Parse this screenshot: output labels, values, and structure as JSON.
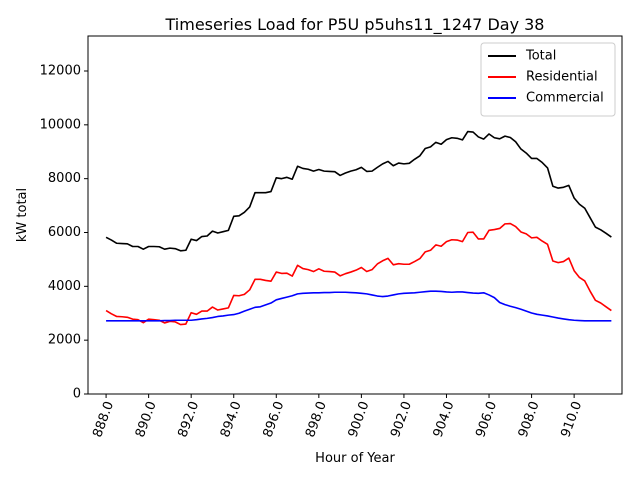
{
  "chart_data": {
    "type": "line",
    "title": "Timeseries Load for P5U p5uhs11_1247  Day 38",
    "xlabel": "Hour of Year",
    "ylabel": "kW total",
    "xlim": [
      887.15,
      912.25
    ],
    "ylim": [
      0,
      13300
    ],
    "xticks": [
      888,
      890,
      892,
      894,
      896,
      898,
      900,
      902,
      904,
      906,
      908,
      910
    ],
    "xtick_labels": [
      "888.0",
      "890.0",
      "892.0",
      "894.0",
      "896.0",
      "898.0",
      "900.0",
      "902.0",
      "904.0",
      "906.0",
      "908.0",
      "910.0"
    ],
    "yticks": [
      0,
      2000,
      4000,
      6000,
      8000,
      10000,
      12000
    ],
    "ytick_labels": [
      "0",
      "2000",
      "4000",
      "6000",
      "8000",
      "10000",
      "12000"
    ],
    "grid": false,
    "legend_position": "top-right",
    "x": [
      888.0,
      888.25,
      888.5,
      888.75,
      889.0,
      889.25,
      889.5,
      889.75,
      890.0,
      890.25,
      890.5,
      890.75,
      891.0,
      891.25,
      891.5,
      891.75,
      892.0,
      892.25,
      892.5,
      892.75,
      893.0,
      893.25,
      893.5,
      893.75,
      894.0,
      894.25,
      894.5,
      894.75,
      895.0,
      895.25,
      895.5,
      895.75,
      896.0,
      896.25,
      896.5,
      896.75,
      897.0,
      897.25,
      897.5,
      897.75,
      898.0,
      898.25,
      898.5,
      898.75,
      899.0,
      899.25,
      899.5,
      899.75,
      900.0,
      900.25,
      900.5,
      900.75,
      901.0,
      901.25,
      901.5,
      901.75,
      902.0,
      902.25,
      902.5,
      902.75,
      903.0,
      903.25,
      903.5,
      903.75,
      904.0,
      904.25,
      904.5,
      904.75,
      905.0,
      905.25,
      905.5,
      905.75,
      906.0,
      906.25,
      906.5,
      906.75,
      907.0,
      907.25,
      907.5,
      907.75,
      908.0,
      908.25,
      908.5,
      908.75,
      909.0,
      909.25,
      909.5,
      909.75,
      910.0,
      910.25,
      910.5,
      910.75,
      911.0,
      911.25,
      911.5,
      911.75
    ],
    "series": [
      {
        "name": "Total",
        "color": "#000000",
        "values": [
          5820,
          5720,
          5600,
          5590,
          5580,
          5480,
          5480,
          5380,
          5480,
          5480,
          5470,
          5380,
          5420,
          5400,
          5320,
          5340,
          5750,
          5700,
          5850,
          5870,
          6050,
          5980,
          6030,
          6080,
          6600,
          6620,
          6750,
          6950,
          7480,
          7480,
          7480,
          7520,
          8030,
          8000,
          8050,
          7980,
          8460,
          8380,
          8350,
          8280,
          8340,
          8280,
          8270,
          8260,
          8120,
          8210,
          8280,
          8330,
          8420,
          8270,
          8280,
          8420,
          8550,
          8640,
          8480,
          8580,
          8550,
          8570,
          8720,
          8850,
          9120,
          9180,
          9350,
          9280,
          9450,
          9520,
          9500,
          9440,
          9750,
          9730,
          9550,
          9470,
          9660,
          9520,
          9480,
          9580,
          9530,
          9370,
          9100,
          8950,
          8750,
          8750,
          8600,
          8400,
          7720,
          7650,
          7680,
          7750,
          7280,
          7050,
          6900,
          6550,
          6200,
          6100,
          5970,
          5830
        ]
      },
      {
        "name": "Residential",
        "color": "#ff0000",
        "values": [
          3100,
          2980,
          2880,
          2870,
          2850,
          2780,
          2760,
          2650,
          2780,
          2760,
          2740,
          2640,
          2700,
          2680,
          2580,
          2600,
          3020,
          2960,
          3080,
          3080,
          3230,
          3120,
          3160,
          3200,
          3660,
          3650,
          3700,
          3870,
          4260,
          4260,
          4220,
          4190,
          4530,
          4480,
          4490,
          4380,
          4780,
          4660,
          4620,
          4550,
          4650,
          4560,
          4550,
          4530,
          4390,
          4470,
          4530,
          4600,
          4700,
          4550,
          4620,
          4830,
          4950,
          5040,
          4800,
          4840,
          4820,
          4820,
          4920,
          5030,
          5280,
          5340,
          5540,
          5490,
          5660,
          5730,
          5720,
          5660,
          6000,
          6010,
          5760,
          5760,
          6080,
          6110,
          6150,
          6320,
          6330,
          6220,
          6020,
          5950,
          5800,
          5820,
          5680,
          5560,
          4940,
          4880,
          4920,
          5050,
          4580,
          4330,
          4200,
          3820,
          3480,
          3380,
          3240,
          3100
        ]
      },
      {
        "name": "Commercial",
        "color": "#0000ff",
        "values": [
          2720,
          2720,
          2720,
          2720,
          2720,
          2720,
          2720,
          2720,
          2720,
          2720,
          2720,
          2730,
          2730,
          2740,
          2740,
          2740,
          2740,
          2760,
          2790,
          2810,
          2840,
          2880,
          2900,
          2930,
          2950,
          3000,
          3080,
          3150,
          3220,
          3240,
          3310,
          3380,
          3500,
          3550,
          3600,
          3650,
          3720,
          3740,
          3750,
          3760,
          3760,
          3770,
          3770,
          3780,
          3780,
          3780,
          3770,
          3760,
          3740,
          3720,
          3680,
          3640,
          3620,
          3640,
          3680,
          3720,
          3740,
          3750,
          3760,
          3780,
          3800,
          3820,
          3820,
          3810,
          3790,
          3780,
          3790,
          3790,
          3770,
          3750,
          3740,
          3760,
          3680,
          3580,
          3400,
          3320,
          3260,
          3210,
          3150,
          3080,
          3010,
          2960,
          2930,
          2900,
          2860,
          2820,
          2790,
          2760,
          2740,
          2730,
          2720,
          2720,
          2720,
          2720,
          2720,
          2720
        ]
      }
    ]
  }
}
